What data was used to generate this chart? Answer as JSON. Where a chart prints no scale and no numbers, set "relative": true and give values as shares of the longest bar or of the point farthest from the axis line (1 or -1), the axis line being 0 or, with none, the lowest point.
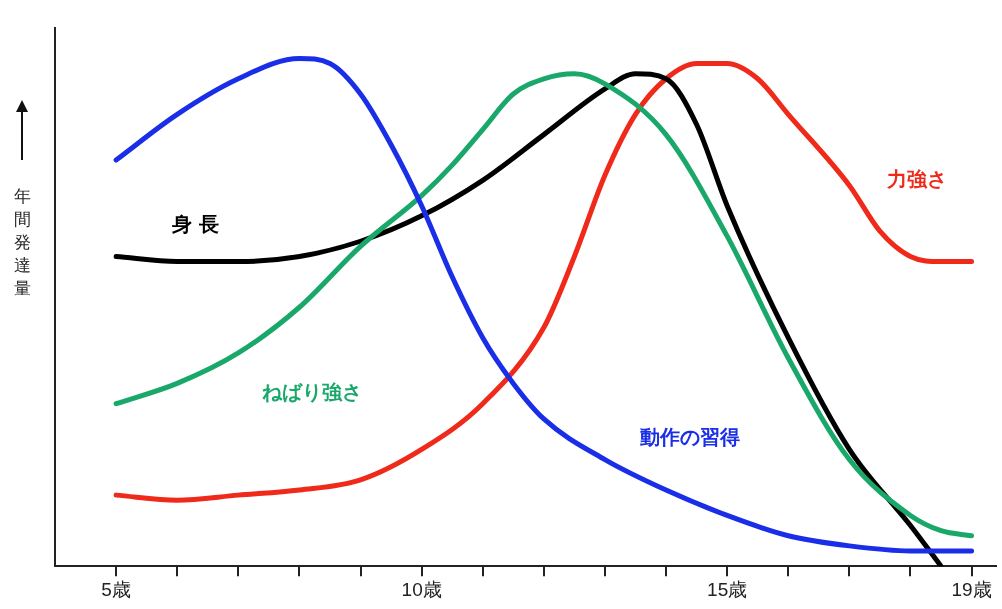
{
  "chart_data": {
    "type": "line",
    "relative": true,
    "ylabel": "年間発達量",
    "xlim": [
      4,
      19.4
    ],
    "xticks": [
      {
        "value": 5,
        "label": "5歳"
      },
      {
        "value": 6,
        "label": null
      },
      {
        "value": 7,
        "label": null
      },
      {
        "value": 8,
        "label": null
      },
      {
        "value": 9,
        "label": null
      },
      {
        "value": 10,
        "label": "10歳"
      },
      {
        "value": 11,
        "label": null
      },
      {
        "value": 12,
        "label": null
      },
      {
        "value": 13,
        "label": null
      },
      {
        "value": 14,
        "label": null
      },
      {
        "value": 15,
        "label": "15歳"
      },
      {
        "value": 16,
        "label": null
      },
      {
        "value": 17,
        "label": null
      },
      {
        "value": 18,
        "label": null
      },
      {
        "value": 19,
        "label": "19歳"
      }
    ],
    "grid": false,
    "legend": false,
    "marker": "none",
    "line_style": "solid",
    "series": [
      {
        "name": "動作の習得",
        "color": "#1a2ee8",
        "x": [
          5,
          6,
          7,
          8,
          8.5,
          9,
          9.5,
          10,
          10.5,
          11,
          11.5,
          12,
          13,
          14,
          15,
          16,
          17,
          18,
          19
        ],
        "values": [
          0.8,
          0.89,
          0.96,
          1.0,
          0.99,
          0.93,
          0.83,
          0.71,
          0.57,
          0.45,
          0.36,
          0.29,
          0.21,
          0.15,
          0.1,
          0.06,
          0.04,
          0.03,
          0.03
        ]
      },
      {
        "name": "ねばり強さ",
        "color": "#1aa86a",
        "x": [
          5,
          6,
          7,
          8,
          9,
          10,
          10.5,
          11,
          11.5,
          12,
          12.5,
          13,
          14,
          15,
          16,
          17,
          18,
          18.5,
          19
        ],
        "values": [
          0.32,
          0.36,
          0.42,
          0.51,
          0.63,
          0.73,
          0.79,
          0.86,
          0.93,
          0.96,
          0.97,
          0.95,
          0.85,
          0.65,
          0.41,
          0.21,
          0.1,
          0.07,
          0.06
        ]
      },
      {
        "name": "身 長",
        "color": "#000000",
        "x": [
          5,
          6,
          7,
          8,
          9,
          10,
          11,
          12,
          13,
          13.5,
          14,
          14.5,
          15,
          16,
          17,
          18,
          18.5
        ],
        "values": [
          0.61,
          0.6,
          0.6,
          0.61,
          0.64,
          0.69,
          0.76,
          0.85,
          0.94,
          0.97,
          0.96,
          0.87,
          0.71,
          0.45,
          0.23,
          0.08,
          0
        ]
      },
      {
        "name": "力強さ",
        "color": "#f02a1a",
        "x": [
          5,
          6,
          7,
          8,
          9,
          10,
          11,
          12,
          12.5,
          13,
          13.5,
          14,
          14.5,
          15,
          15.5,
          16,
          17,
          17.5,
          18,
          18.5,
          19
        ],
        "values": [
          0.14,
          0.13,
          0.14,
          0.15,
          0.17,
          0.23,
          0.32,
          0.47,
          0.61,
          0.77,
          0.89,
          0.96,
          0.99,
          0.99,
          0.96,
          0.89,
          0.75,
          0.66,
          0.61,
          0.6,
          0.6
        ]
      }
    ]
  }
}
